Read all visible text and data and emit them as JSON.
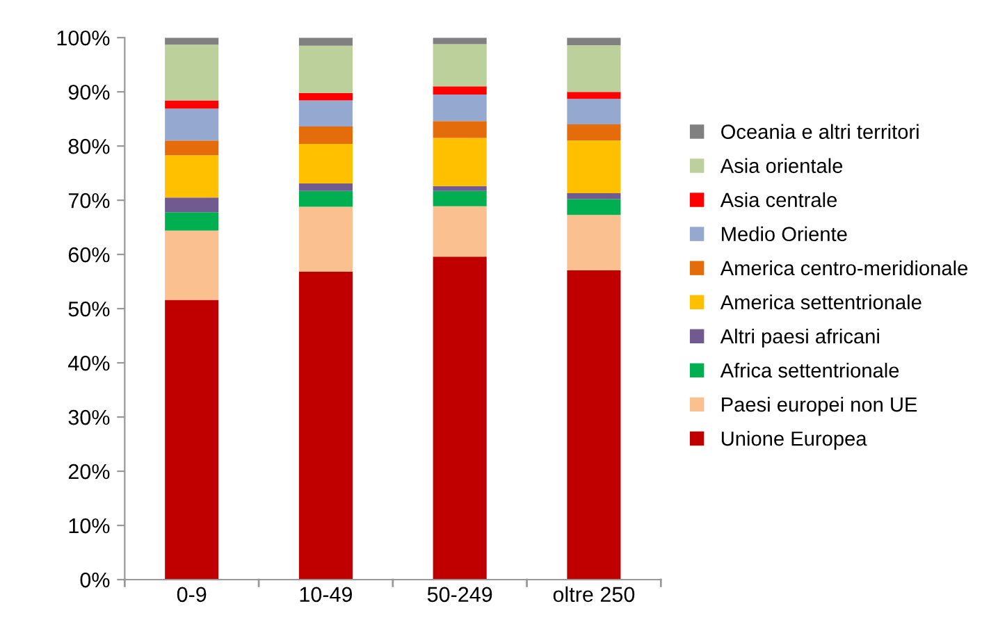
{
  "chart_data": {
    "type": "bar",
    "stacked": true,
    "categories": [
      "0-9",
      "10-49",
      "50-249",
      "oltre 250"
    ],
    "series": [
      {
        "name": "Unione Europea",
        "color": "#c00000",
        "values": [
          51.6,
          56.8,
          59.6,
          57.1
        ]
      },
      {
        "name": "Paesi europei non UE",
        "color": "#fac090",
        "values": [
          12.8,
          12.0,
          9.3,
          10.2
        ]
      },
      {
        "name": "Africa settentrionale",
        "color": "#00b050",
        "values": [
          3.4,
          2.9,
          2.8,
          2.9
        ]
      },
      {
        "name": "Altri paesi africani",
        "color": "#705a8f",
        "values": [
          2.7,
          1.4,
          0.9,
          1.1
        ]
      },
      {
        "name": "America settentrionale",
        "color": "#ffc000",
        "values": [
          7.8,
          7.3,
          8.9,
          9.7
        ]
      },
      {
        "name": "America centro-meridionale",
        "color": "#e46c0a",
        "values": [
          2.7,
          3.2,
          3.1,
          3.0
        ]
      },
      {
        "name": "Medio Oriente",
        "color": "#95a9d0",
        "values": [
          5.9,
          4.8,
          4.9,
          4.7
        ]
      },
      {
        "name": "Asia centrale",
        "color": "#ff0000",
        "values": [
          1.5,
          1.4,
          1.5,
          1.3
        ]
      },
      {
        "name": "Asia orientale",
        "color": "#bbd09a",
        "values": [
          10.3,
          8.7,
          7.8,
          8.6
        ]
      },
      {
        "name": "Oceania e altri territori",
        "color": "#808080",
        "values": [
          1.3,
          1.5,
          1.2,
          1.4
        ]
      }
    ],
    "ylim": [
      0,
      100
    ],
    "yticks": [
      {
        "value": 0,
        "label": "0%"
      },
      {
        "value": 10,
        "label": "10%"
      },
      {
        "value": 20,
        "label": "20%"
      },
      {
        "value": 30,
        "label": "30%"
      },
      {
        "value": 40,
        "label": "40%"
      },
      {
        "value": 50,
        "label": "50%"
      },
      {
        "value": 60,
        "label": "60%"
      },
      {
        "value": 70,
        "label": "70%"
      },
      {
        "value": 80,
        "label": "80%"
      },
      {
        "value": 90,
        "label": "90%"
      },
      {
        "value": 100,
        "label": "100%"
      }
    ],
    "grid": false,
    "legend": "right"
  }
}
